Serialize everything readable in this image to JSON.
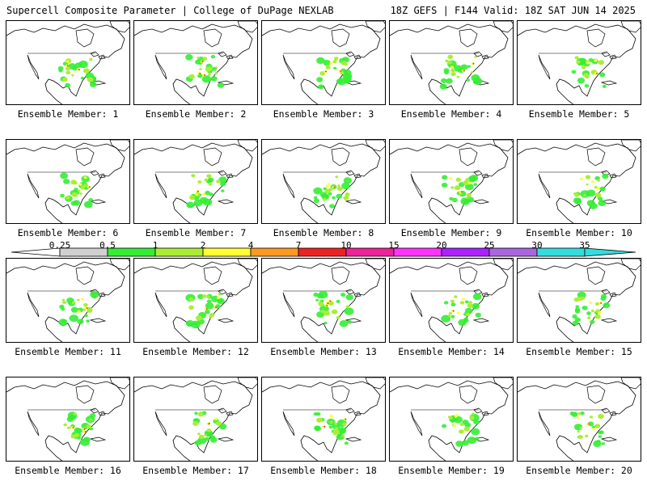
{
  "header": {
    "title_left": "Supercell Composite Parameter | College of DuPage NEXLAB",
    "title_right": "18Z GEFS | F144 Valid: 18Z SAT JUN 14 2025"
  },
  "members": [
    "Ensemble Member: 1",
    "Ensemble Member: 2",
    "Ensemble Member: 3",
    "Ensemble Member: 4",
    "Ensemble Member: 5",
    "Ensemble Member: 6",
    "Ensemble Member: 7",
    "Ensemble Member: 8",
    "Ensemble Member: 9",
    "Ensemble Member: 10",
    "Ensemble Member: 11",
    "Ensemble Member: 12",
    "Ensemble Member: 13",
    "Ensemble Member: 14",
    "Ensemble Member: 15",
    "Ensemble Member: 16",
    "Ensemble Member: 17",
    "Ensemble Member: 18",
    "Ensemble Member: 19",
    "Ensemble Member: 20"
  ],
  "colorbar": {
    "ticks": [
      "0.25",
      "0.5",
      "1",
      "2",
      "4",
      "7",
      "10",
      "15",
      "20",
      "25",
      "30",
      "35"
    ],
    "colors": [
      "#ffffff",
      "#d0d0d0",
      "#33ee33",
      "#aaee33",
      "#ffff33",
      "#ff9922",
      "#ee2222",
      "#ee2299",
      "#ff33ff",
      "#aa22ff",
      "#aa66dd",
      "#33dddd"
    ]
  }
}
